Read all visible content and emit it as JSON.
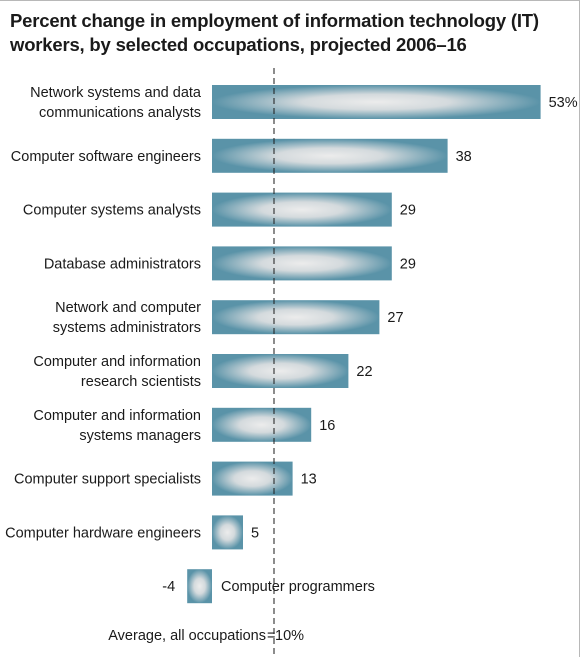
{
  "title_lines": [
    "Percent change in employment of information technology (IT)",
    "workers, by selected occupations, projected 2006–16"
  ],
  "average": {
    "label": "Average, all occupations",
    "separator": "=",
    "value_text": "10%",
    "value": 10
  },
  "colors": {
    "bar_edge": "#5a93a8",
    "bar_center": "#ececec",
    "text": "#1a1a1a",
    "avg_line": "#1a1a1a"
  },
  "chart_data": {
    "type": "bar",
    "orientation": "horizontal",
    "title": "Percent change in employment of information technology (IT) workers, by selected occupations, projected 2006–16",
    "xlabel": "",
    "ylabel": "",
    "grid": false,
    "legend": "none",
    "xlim": [
      -5,
      55
    ],
    "reference_line": {
      "label": "Average, all occupations",
      "value": 10
    },
    "categories": [
      [
        "Network systems and data",
        "communications analysts"
      ],
      [
        "Computer software engineers"
      ],
      [
        "Computer systems analysts"
      ],
      [
        "Database administrators"
      ],
      [
        "Network and computer",
        "systems administrators"
      ],
      [
        "Computer and information",
        "research scientists"
      ],
      [
        "Computer and information",
        "systems managers"
      ],
      [
        "Computer support specialists"
      ],
      [
        "Computer hardware engineers"
      ],
      [
        "Computer programmers"
      ]
    ],
    "values": [
      53,
      38,
      29,
      29,
      27,
      22,
      16,
      13,
      5,
      -4
    ],
    "value_labels": [
      "53%",
      "38",
      "29",
      "29",
      "27",
      "22",
      "16",
      "13",
      "5",
      "-4"
    ]
  }
}
